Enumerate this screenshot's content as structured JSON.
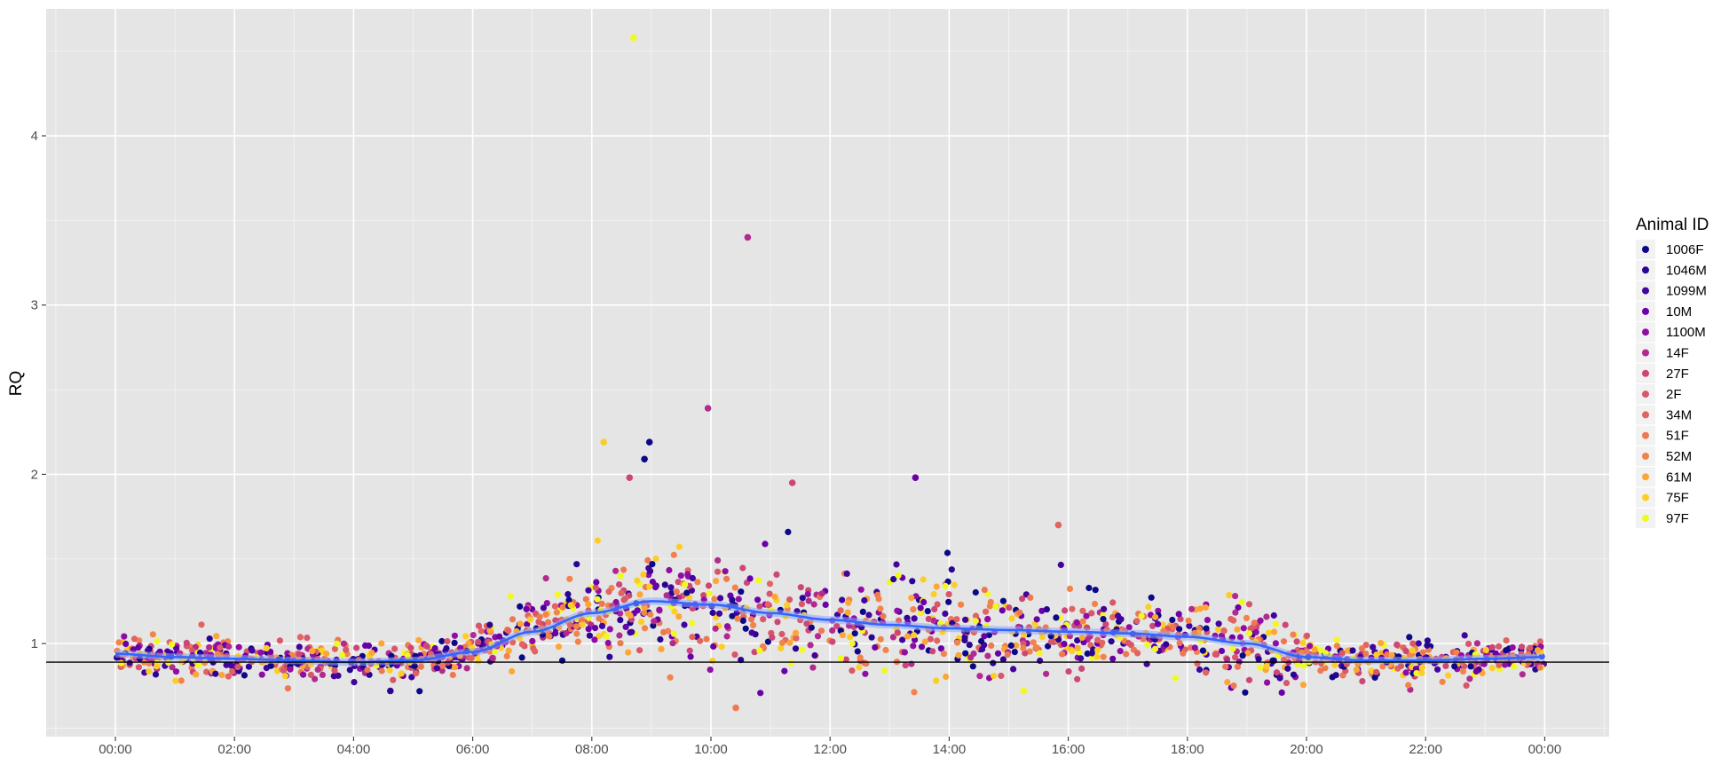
{
  "chart_data": {
    "type": "scatter",
    "title": "",
    "xlabel": "",
    "ylabel": "RQ",
    "x_range": [
      "23:10",
      "00:30"
    ],
    "ylim": [
      0.45,
      4.75
    ],
    "x_ticks": [
      "00:00",
      "02:00",
      "04:00",
      "06:00",
      "08:00",
      "10:00",
      "12:00",
      "14:00",
      "16:00",
      "18:00",
      "20:00",
      "22:00",
      "00:00"
    ],
    "y_ticks": [
      1,
      2,
      3,
      4
    ],
    "grid": true,
    "background": "#e5e5e5",
    "legend": {
      "title": "Animal ID",
      "position": "right",
      "palette": "plasma"
    },
    "series": [
      {
        "name": "1006F",
        "color": "#0d0887"
      },
      {
        "name": "1046M",
        "color": "#2a0593"
      },
      {
        "name": "1099M",
        "color": "#41049d"
      },
      {
        "name": "10M",
        "color": "#6a00a8"
      },
      {
        "name": "1100M",
        "color": "#8f0da4"
      },
      {
        "name": "14F",
        "color": "#b12a90"
      },
      {
        "name": "27F",
        "color": "#cc4778"
      },
      {
        "name": "2F",
        "color": "#d8576b"
      },
      {
        "name": "34M",
        "color": "#e16462"
      },
      {
        "name": "51F",
        "color": "#ed7953"
      },
      {
        "name": "52M",
        "color": "#f2844b"
      },
      {
        "name": "61M",
        "color": "#fca636"
      },
      {
        "name": "75F",
        "color": "#fcce25"
      },
      {
        "name": "97F",
        "color": "#f0f921"
      }
    ],
    "trend": {
      "type": "smooth",
      "color": "#3366ff",
      "points": [
        {
          "x": "00:00",
          "y": 0.94
        },
        {
          "x": "01:00",
          "y": 0.92
        },
        {
          "x": "02:00",
          "y": 0.91
        },
        {
          "x": "03:00",
          "y": 0.9
        },
        {
          "x": "04:00",
          "y": 0.89
        },
        {
          "x": "05:00",
          "y": 0.9
        },
        {
          "x": "06:00",
          "y": 0.95
        },
        {
          "x": "07:00",
          "y": 1.07
        },
        {
          "x": "08:00",
          "y": 1.18
        },
        {
          "x": "09:00",
          "y": 1.25
        },
        {
          "x": "10:00",
          "y": 1.23
        },
        {
          "x": "11:00",
          "y": 1.18
        },
        {
          "x": "12:00",
          "y": 1.14
        },
        {
          "x": "13:00",
          "y": 1.11
        },
        {
          "x": "14:00",
          "y": 1.09
        },
        {
          "x": "15:00",
          "y": 1.08
        },
        {
          "x": "16:00",
          "y": 1.07
        },
        {
          "x": "17:00",
          "y": 1.06
        },
        {
          "x": "18:00",
          "y": 1.04
        },
        {
          "x": "19:00",
          "y": 1.0
        },
        {
          "x": "20:00",
          "y": 0.92
        },
        {
          "x": "21:00",
          "y": 0.9
        },
        {
          "x": "22:00",
          "y": 0.9
        },
        {
          "x": "23:00",
          "y": 0.91
        },
        {
          "x": "24:00",
          "y": 0.92
        }
      ]
    },
    "reference_line": {
      "y": 0.89,
      "color": "#000000"
    },
    "outliers": [
      {
        "x": "08:42",
        "y": 4.58,
        "series": "97F"
      },
      {
        "x": "10:37",
        "y": 3.4,
        "series": "14F"
      },
      {
        "x": "09:57",
        "y": 2.39,
        "series": "14F"
      },
      {
        "x": "08:58",
        "y": 2.19,
        "series": "1006F"
      },
      {
        "x": "08:53",
        "y": 2.09,
        "series": "1006F"
      },
      {
        "x": "08:12",
        "y": 2.19,
        "series": "75F"
      },
      {
        "x": "13:26",
        "y": 1.98,
        "series": "10M"
      },
      {
        "x": "11:22",
        "y": 1.95,
        "series": "27F"
      },
      {
        "x": "08:38",
        "y": 1.98,
        "series": "27F"
      },
      {
        "x": "15:50",
        "y": 1.7,
        "series": "34M"
      },
      {
        "x": "10:25",
        "y": 0.62,
        "series": "51F"
      },
      {
        "x": "04:37",
        "y": 0.72,
        "series": "1046M"
      },
      {
        "x": "15:15",
        "y": 0.72,
        "series": "97F"
      }
    ]
  }
}
